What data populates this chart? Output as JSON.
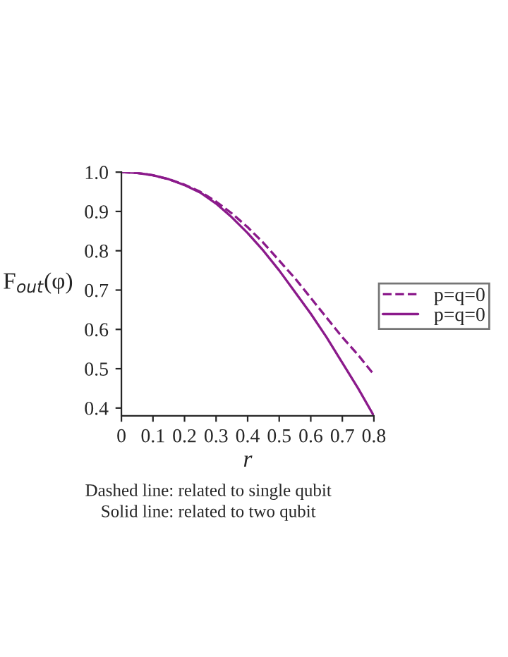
{
  "chart_data": {
    "type": "line",
    "xlabel": "r",
    "ylabel": "F$_{out}$(φ)",
    "x": [
      0,
      0.05,
      0.1,
      0.15,
      0.2,
      0.25,
      0.3,
      0.35,
      0.4,
      0.45,
      0.5,
      0.55,
      0.6,
      0.65,
      0.7,
      0.75,
      0.8
    ],
    "series": [
      {
        "name": "p=q=0",
        "color": "#8b1a8b",
        "line_style": "dashed",
        "values": [
          1.0,
          0.998,
          0.992,
          0.982,
          0.968,
          0.95,
          0.925,
          0.895,
          0.86,
          0.82,
          0.775,
          0.73,
          0.68,
          0.63,
          0.58,
          0.535,
          0.485
        ]
      },
      {
        "name": "p=q=0",
        "color": "#8b1a8b",
        "line_style": "solid",
        "values": [
          1.0,
          0.998,
          0.992,
          0.982,
          0.967,
          0.948,
          0.92,
          0.885,
          0.845,
          0.8,
          0.75,
          0.695,
          0.64,
          0.58,
          0.515,
          0.45,
          0.38
        ]
      }
    ],
    "xlim": [
      0,
      0.8
    ],
    "xticks": [
      0,
      0.1,
      0.2,
      0.3,
      0.4,
      0.5,
      0.6,
      0.7,
      0.8
    ],
    "ylim": [
      0.38,
      1.0
    ],
    "yticks": [
      0.4,
      0.5,
      0.6,
      0.7,
      0.8,
      0.9,
      {
        "value": 1.0,
        "label": "1.0"
      }
    ],
    "legend": "right",
    "grid": false,
    "annotations": [
      "Dashed line: related to single qubit",
      "Solid line: related to two qubit"
    ]
  }
}
